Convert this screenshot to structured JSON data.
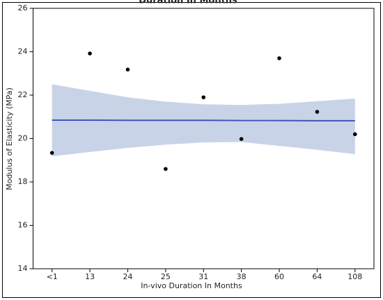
{
  "chart_data": {
    "type": "scatter",
    "title": "Duration In Months",
    "x_label": "In-vivo Duration In Months",
    "y_label": "Modulus of Elasticity (MPa)",
    "categories": [
      "<1",
      "13",
      "24",
      "25",
      "31",
      "38",
      "60",
      "64",
      "108"
    ],
    "values": [
      19.34,
      23.92,
      23.18,
      18.6,
      21.9,
      19.98,
      23.7,
      21.23,
      20.2
    ],
    "color": "#000000",
    "fit": {
      "color": "#3a56b0",
      "values": [
        20.85,
        20.85,
        20.84,
        20.84,
        20.84,
        20.83,
        20.83,
        20.82,
        20.82
      ]
    },
    "band": {
      "color": "#c9d3e8",
      "upper": [
        22.5,
        22.2,
        21.9,
        21.7,
        21.58,
        21.55,
        21.6,
        21.72,
        21.84
      ],
      "lower": [
        19.18,
        19.38,
        19.57,
        19.72,
        19.82,
        19.84,
        19.66,
        19.48,
        19.28
      ]
    },
    "ylim": [
      14,
      26
    ],
    "yticks": [
      14,
      16,
      18,
      20,
      22,
      24,
      26
    ],
    "grid": false
  }
}
